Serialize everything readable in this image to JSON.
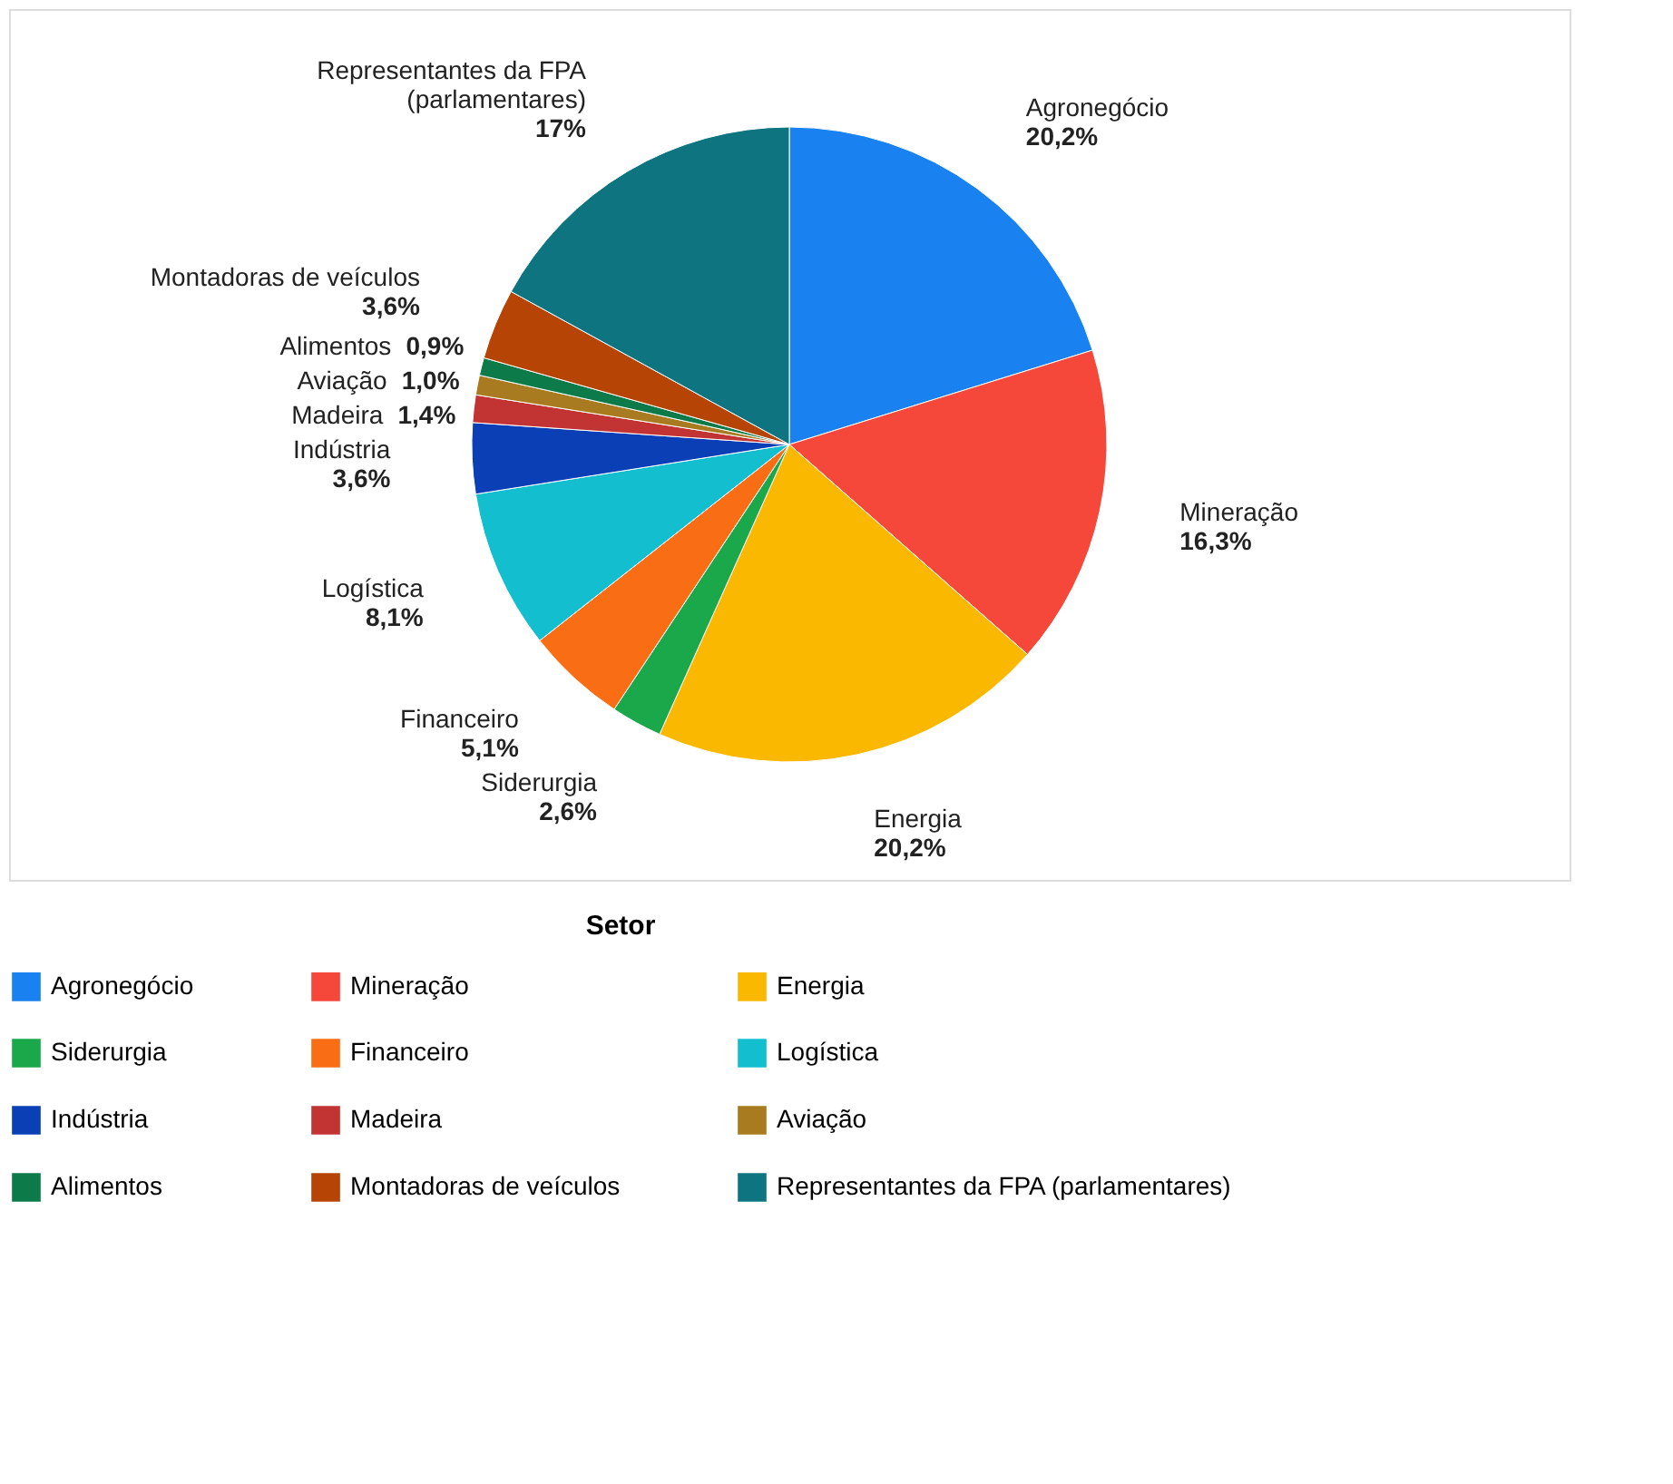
{
  "chart_data": {
    "type": "pie",
    "categories": [
      "Agronegócio",
      "Mineração",
      "Energia",
      "Siderurgia",
      "Financeiro",
      "Logística",
      "Indústria",
      "Madeira",
      "Aviação",
      "Alimentos",
      "Montadoras de veículos",
      "Representantes da FPA (parlamentares)"
    ],
    "values": [
      20.2,
      16.3,
      20.2,
      2.6,
      5.1,
      8.1,
      3.6,
      1.4,
      1.0,
      0.9,
      3.6,
      17
    ],
    "value_labels": [
      "20,2%",
      "16,3%",
      "20,2%",
      "2,6%",
      "5,1%",
      "8,1%",
      "3,6%",
      "1,4%",
      "1,0%",
      "0,9%",
      "3,6%",
      "17%"
    ],
    "colors": [
      "#1a82f0",
      "#f5483a",
      "#fbb800",
      "#1aa84a",
      "#f96d14",
      "#13bfcf",
      "#0a3fb5",
      "#c23434",
      "#a87b20",
      "#0d7a4a",
      "#b54405",
      "#0e7480"
    ],
    "legend_title": "Setor",
    "legend": "bottom"
  }
}
